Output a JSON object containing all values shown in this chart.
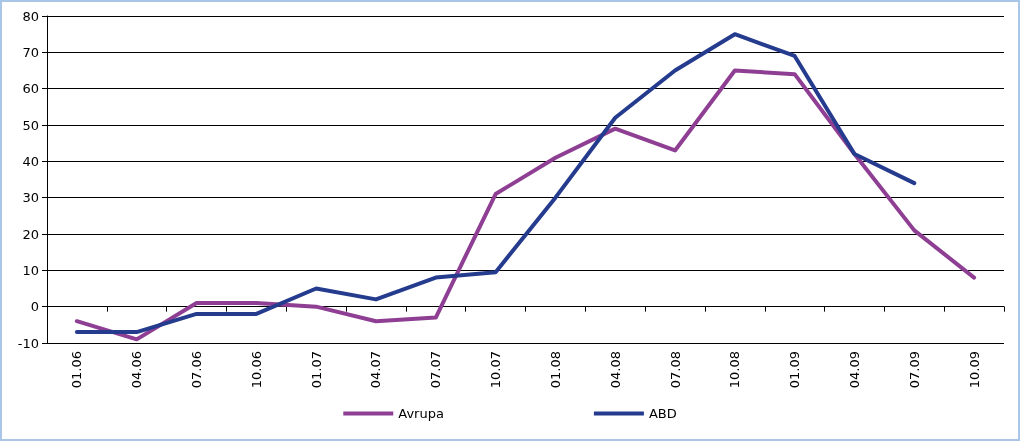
{
  "chart_data": {
    "type": "line",
    "categories": [
      "01.06",
      "04.06",
      "07.06",
      "10.06",
      "01.07",
      "04.07",
      "07.07",
      "10.07",
      "01.08",
      "04.08",
      "07.08",
      "10.08",
      "01.09",
      "04.09",
      "07.09",
      "10.09"
    ],
    "series": [
      {
        "name": "Avrupa",
        "color": "#8e3f93",
        "values": [
          -4,
          -9,
          1,
          1,
          0,
          -4,
          -3,
          31,
          41,
          49,
          43,
          65,
          64,
          42,
          21,
          8
        ]
      },
      {
        "name": "ABD",
        "color": "#253b8e",
        "values": [
          -7,
          -7,
          -2,
          -2,
          5,
          2,
          8,
          9.5,
          30,
          52,
          65,
          75,
          69,
          42,
          34,
          null
        ]
      }
    ],
    "ylim": [
      -10,
      80
    ],
    "yticks": [
      -10,
      0,
      10,
      20,
      30,
      40,
      50,
      60,
      70,
      80
    ],
    "grid": "y",
    "legend": "bottom",
    "marker": "none"
  }
}
